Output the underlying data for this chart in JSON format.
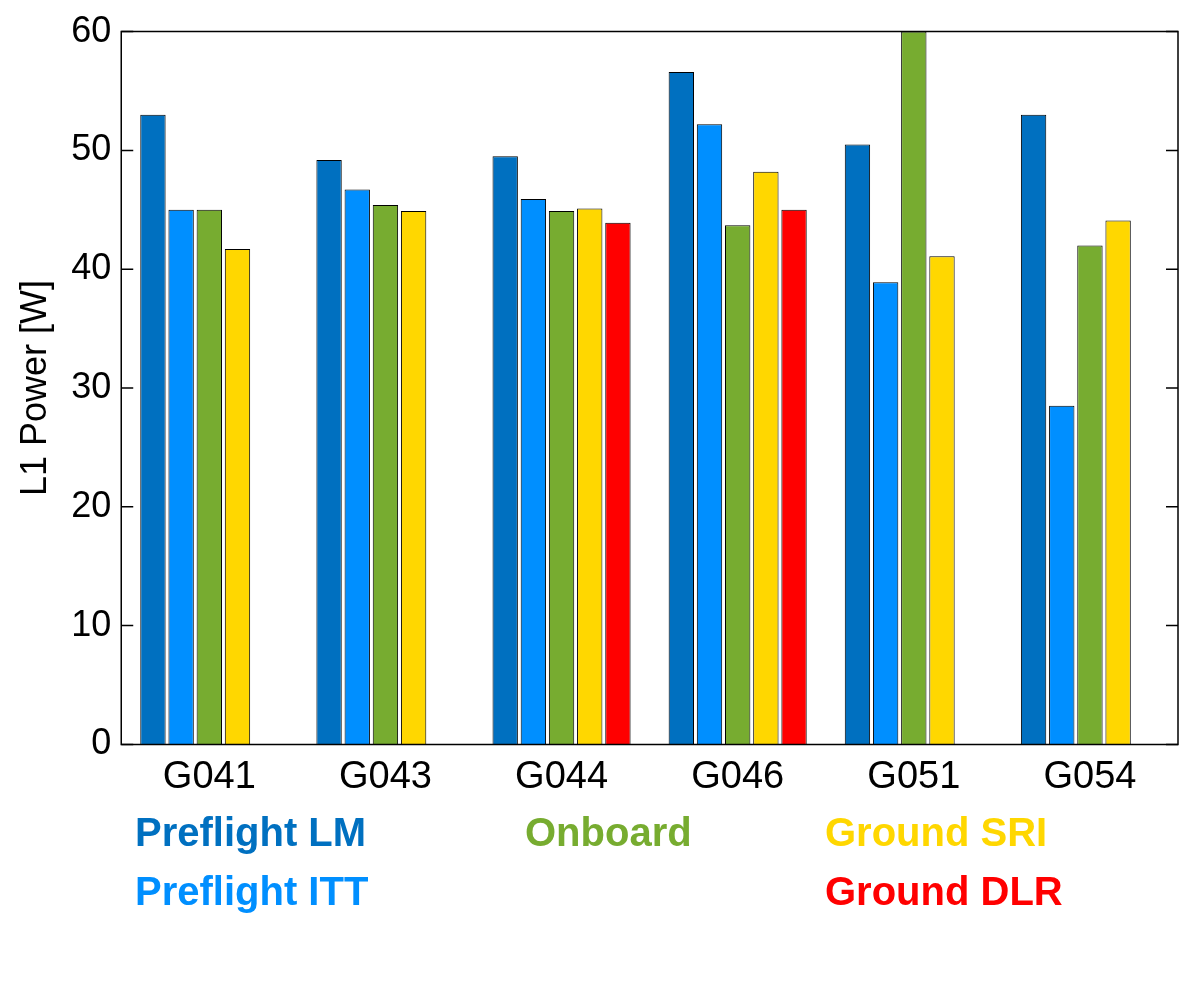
{
  "chart_data": {
    "type": "bar",
    "ylabel": "L1 Power [W]",
    "categories": [
      "G041",
      "G043",
      "G044",
      "G046",
      "G051",
      "G054"
    ],
    "series": [
      {
        "name": "Preflight LM",
        "color": "#0070c0",
        "values": [
          53,
          49.2,
          49.5,
          56.6,
          50.5,
          53
        ]
      },
      {
        "name": "Preflight ITT",
        "color": "#008fff",
        "values": [
          45,
          46.7,
          45.9,
          52.2,
          38.9,
          28.5
        ]
      },
      {
        "name": "Onboard",
        "color": "#77ac30",
        "values": [
          45,
          45.4,
          44.9,
          43.7,
          60,
          42
        ]
      },
      {
        "name": "Ground SRI",
        "color": "#ffd700",
        "values": [
          41.7,
          44.9,
          45.1,
          48.2,
          41.1,
          44.1
        ]
      },
      {
        "name": "Ground DLR",
        "color": "#ff0000",
        "values": [
          null,
          null,
          43.9,
          45,
          null,
          null
        ]
      }
    ],
    "ylim": [
      0,
      60
    ],
    "yticks": [
      0,
      10,
      20,
      30,
      40,
      50,
      60
    ],
    "grid": false,
    "legend": "bottom"
  }
}
